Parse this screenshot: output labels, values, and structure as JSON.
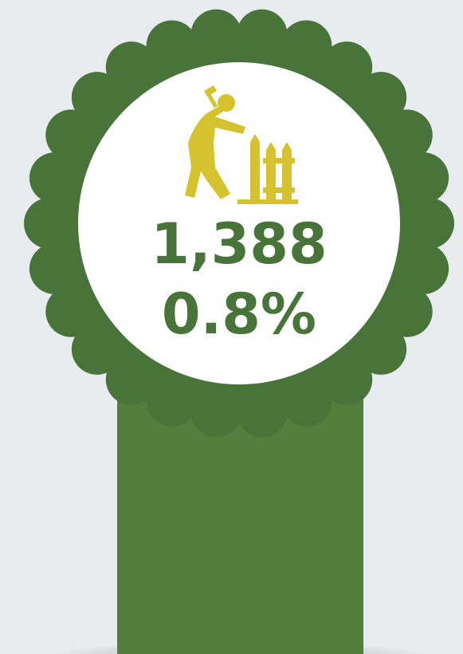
{
  "badge": {
    "count": "1,388",
    "percent": "0.8%"
  }
}
